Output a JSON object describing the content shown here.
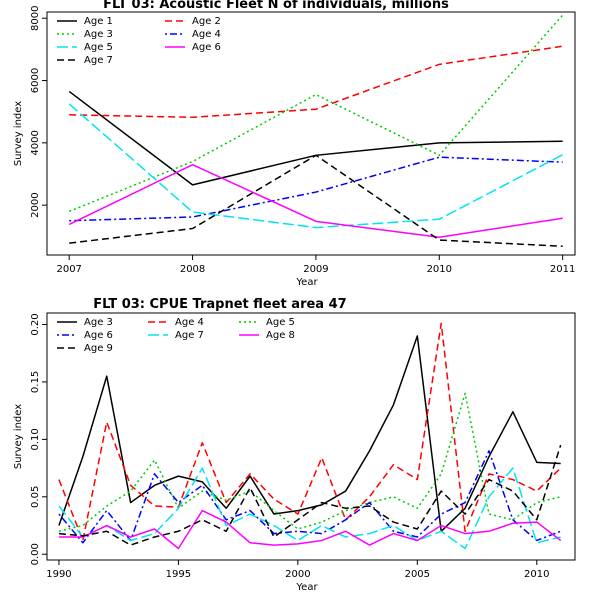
{
  "chart_data": [
    {
      "type": "line",
      "title": "FLT 03: Acoustic Fleet  N of individuals, millions",
      "xlabel": "Year",
      "ylabel": "Survey index",
      "x": [
        2007,
        2008,
        2009,
        2010,
        2011
      ],
      "xlim": [
        2006.82,
        2011.1
      ],
      "ylim": [
        400,
        8200
      ],
      "xticks": [
        2007,
        2008,
        2009,
        2010,
        2011
      ],
      "yticks": [
        2000,
        4000,
        6000,
        8000
      ],
      "legend_position": "top-left",
      "legend_columns": 2,
      "series": [
        {
          "name": "Age 1",
          "color": "#000000",
          "dash": "solid",
          "values": [
            5650,
            2650,
            3600,
            4000,
            4050
          ]
        },
        {
          "name": "Age 2",
          "color": "#ff0000",
          "dash": "dashed",
          "values": [
            4900,
            4820,
            5080,
            6520,
            7100
          ]
        },
        {
          "name": "Age 3",
          "color": "#00cc00",
          "dash": "dotted",
          "values": [
            1800,
            3400,
            5550,
            3600,
            8100
          ]
        },
        {
          "name": "Age 4",
          "color": "#0000ff",
          "dash": "dotdash",
          "values": [
            1500,
            1620,
            2420,
            3540,
            3380
          ]
        },
        {
          "name": "Age 5",
          "color": "#00e5ee",
          "dash": "longdash",
          "values": [
            5250,
            1780,
            1280,
            1550,
            3620
          ]
        },
        {
          "name": "Age 6",
          "color": "#ff00ff",
          "dash": "solid",
          "values": [
            1380,
            3300,
            1480,
            970,
            1580
          ]
        },
        {
          "name": "Age 7",
          "color": "#000000",
          "dash": "dashed",
          "values": [
            780,
            1250,
            3600,
            880,
            680
          ]
        }
      ]
    },
    {
      "type": "line",
      "title": "FLT 03: CPUE Trapnet fleet area 47",
      "xlabel": "Year",
      "ylabel": "Survey index",
      "x": [
        1990,
        1991,
        1992,
        1993,
        1994,
        1995,
        1996,
        1997,
        1998,
        1999,
        2000,
        2001,
        2002,
        2003,
        2004,
        2005,
        2006,
        2007,
        2008,
        2009,
        2010,
        2011
      ],
      "xlim": [
        1989.5,
        2011.6
      ],
      "ylim": [
        -0.005,
        0.21
      ],
      "xticks": [
        1990,
        1995,
        2000,
        2005,
        2010
      ],
      "yticks": [
        "0.00",
        "0.05",
        "0.10",
        "0.15",
        "0.20"
      ],
      "legend_position": "top-left",
      "legend_columns": 3,
      "series": [
        {
          "name": "Age 3",
          "color": "#000000",
          "dash": "solid",
          "values": [
            0.025,
            0.085,
            0.155,
            0.045,
            0.06,
            0.068,
            0.063,
            0.04,
            0.068,
            0.035,
            0.038,
            0.043,
            0.055,
            0.09,
            0.13,
            0.19,
            0.02,
            0.04,
            0.085,
            0.124,
            0.08,
            0.079
          ]
        },
        {
          "name": "Age 4",
          "color": "#ff0000",
          "dash": "dashed",
          "values": [
            0.065,
            0.012,
            0.115,
            0.06,
            0.042,
            0.041,
            0.097,
            0.045,
            0.07,
            0.048,
            0.035,
            0.084,
            0.03,
            0.05,
            0.078,
            0.065,
            0.201,
            0.02,
            0.07,
            0.065,
            0.055,
            0.075
          ]
        },
        {
          "name": "Age 5",
          "color": "#00cc00",
          "dash": "dotted",
          "values": [
            0.02,
            0.025,
            0.042,
            0.055,
            0.082,
            0.04,
            0.055,
            0.047,
            0.055,
            0.038,
            0.022,
            0.028,
            0.038,
            0.045,
            0.05,
            0.04,
            0.07,
            0.14,
            0.035,
            0.03,
            0.045,
            0.05
          ]
        },
        {
          "name": "Age 6",
          "color": "#0000ff",
          "dash": "dotdash",
          "values": [
            0.035,
            0.01,
            0.038,
            0.012,
            0.07,
            0.045,
            0.06,
            0.03,
            0.038,
            0.018,
            0.02,
            0.018,
            0.03,
            0.045,
            0.02,
            0.015,
            0.035,
            0.045,
            0.09,
            0.03,
            0.012,
            0.02
          ]
        },
        {
          "name": "Age 7",
          "color": "#00e5ee",
          "dash": "longdash",
          "values": [
            0.042,
            0.015,
            0.025,
            0.012,
            0.018,
            0.04,
            0.075,
            0.025,
            0.035,
            0.025,
            0.012,
            0.025,
            0.015,
            0.018,
            0.025,
            0.012,
            0.02,
            0.005,
            0.05,
            0.075,
            0.01,
            0.015
          ]
        },
        {
          "name": "Age 8",
          "color": "#ff00ff",
          "dash": "solid",
          "values": [
            0.015,
            0.015,
            0.025,
            0.015,
            0.022,
            0.005,
            0.038,
            0.028,
            0.01,
            0.008,
            0.009,
            0.012,
            0.02,
            0.008,
            0.018,
            0.012,
            0.025,
            0.018,
            0.02,
            0.027,
            0.028,
            0.012
          ]
        },
        {
          "name": "Age 9",
          "color": "#000000",
          "dash": "dashed",
          "values": [
            0.018,
            0.016,
            0.02,
            0.008,
            0.015,
            0.02,
            0.03,
            0.02,
            0.058,
            0.015,
            0.03,
            0.045,
            0.04,
            0.042,
            0.028,
            0.022,
            0.055,
            0.035,
            0.065,
            0.055,
            0.03,
            0.095
          ]
        }
      ]
    }
  ]
}
